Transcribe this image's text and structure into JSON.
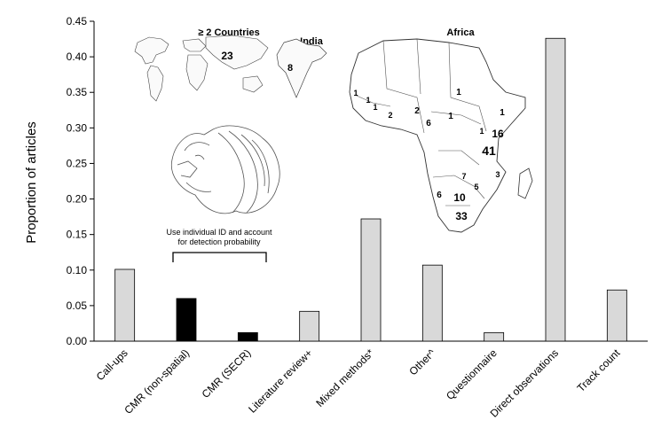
{
  "chart_data": {
    "type": "bar",
    "ylabel": "Proportion of articles",
    "ylim": [
      0,
      0.45
    ],
    "yticks": [
      "0.00",
      "0.05",
      "0.10",
      "0.15",
      "0.20",
      "0.25",
      "0.30",
      "0.35",
      "0.40",
      "0.45"
    ],
    "grid": false,
    "categories": [
      "Call-ups",
      "CMR (non-spatial)",
      "CMR (SECR)",
      "Literature review+",
      "Mixed methods*",
      "Other^",
      "Questionnaire",
      "Direct observations",
      "Track count"
    ],
    "values": [
      0.101,
      0.06,
      0.012,
      0.042,
      0.172,
      0.107,
      0.012,
      0.426,
      0.072
    ],
    "bar_colors": [
      "#d9d9d9",
      "#000000",
      "#000000",
      "#d9d9d9",
      "#d9d9d9",
      "#d9d9d9",
      "#d9d9d9",
      "#d9d9d9",
      "#d9d9d9"
    ],
    "annotation": {
      "line1": "Use individual ID and account",
      "line2": "for detection probability"
    },
    "insets": {
      "world": {
        "title": "≥ 2 Countries",
        "count": "23"
      },
      "india": {
        "title": "India",
        "count": "8"
      },
      "africa": {
        "title": "Africa",
        "counts": [
          "1",
          "1",
          "1",
          "2",
          "2",
          "1",
          "6",
          "1",
          "1",
          "1",
          "16",
          "41",
          "7",
          "5",
          "3",
          "6",
          "10",
          "33"
        ]
      }
    }
  }
}
